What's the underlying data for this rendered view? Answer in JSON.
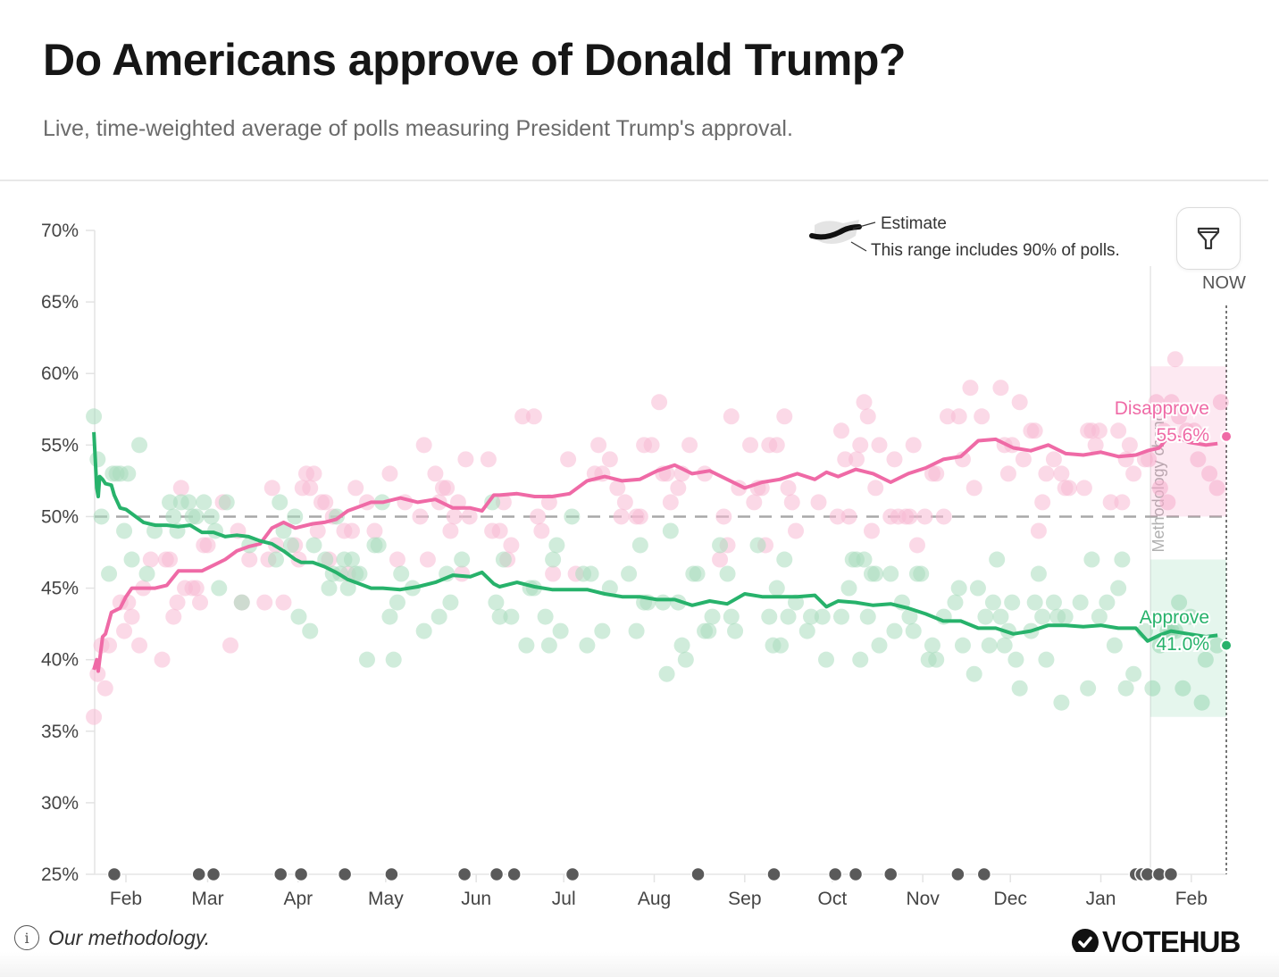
{
  "header": {
    "title": "Do Americans approve of Donald Trump?",
    "subtitle": "Live, time-weighted average of polls measuring President Trump's approval."
  },
  "legend": {
    "estimate_label": "Estimate",
    "range_label": "This range includes 90% of polls."
  },
  "controls": {
    "filter_icon": "funnel-icon",
    "now_label": "NOW"
  },
  "footer": {
    "methodology_link": "Our methodology.",
    "info_icon": "info-icon",
    "brand": "VOTEHUB"
  },
  "colors": {
    "approve": "#27b26b",
    "disapprove": "#ef6aa6",
    "approve_dot": "#a9dcbd",
    "disapprove_dot": "#f8b9d4",
    "axis_text": "#444444",
    "event_dot": "#5a5a5a"
  },
  "chart_data": {
    "type": "line",
    "title": "Do Americans approve of Donald Trump?",
    "xlabel": "",
    "ylabel": "",
    "x_unit": "days since Jan 20",
    "xlim": [
      0,
      390
    ],
    "ylim": [
      25,
      70
    ],
    "y_ticks": [
      70,
      65,
      60,
      55,
      50,
      45,
      40,
      35,
      30,
      25
    ],
    "y_tick_labels": [
      "70%",
      "65%",
      "60%",
      "55%",
      "50%",
      "45%",
      "40%",
      "35%",
      "30%",
      "25%"
    ],
    "x_ticks": [
      12,
      40,
      71,
      101,
      132,
      162,
      193,
      224,
      254,
      285,
      315,
      346,
      377
    ],
    "x_tick_labels": [
      "Feb",
      "Mar",
      "Apr",
      "May",
      "Jun",
      "Jul",
      "Aug",
      "Sep",
      "Oct",
      "Nov",
      "Dec",
      "Jan",
      "Feb"
    ],
    "reference_line": 50,
    "now_x": 389,
    "methodology_change_x": 363,
    "methodology_change_label": "Methodology change",
    "grid": false,
    "series": [
      {
        "name": "Approve",
        "latest_label": "41.0%",
        "latest": 41.0,
        "x": [
          1,
          2,
          2.5,
          3,
          4,
          5,
          7,
          8,
          10,
          12,
          14,
          18,
          22,
          26,
          30,
          34,
          38,
          42,
          46,
          50,
          54,
          58,
          62,
          66,
          70,
          72,
          76,
          80,
          84,
          88,
          92,
          96,
          100,
          106,
          112,
          118,
          124,
          130,
          134,
          138,
          140,
          146,
          152,
          158,
          164,
          170,
          176,
          182,
          188,
          194,
          200,
          206,
          212,
          218,
          224,
          230,
          236,
          242,
          248,
          252,
          256,
          262,
          268,
          274,
          280,
          286,
          292,
          298,
          304,
          310,
          316,
          322,
          328,
          334,
          340,
          346,
          352,
          358,
          362,
          366,
          370,
          376,
          382,
          386,
          389
        ],
        "values": [
          55.9,
          52.0,
          51.4,
          52.8,
          52.6,
          52.3,
          52.2,
          51.5,
          50.6,
          50.5,
          50.2,
          49.6,
          49.4,
          49.4,
          49.3,
          49.4,
          48.9,
          48.9,
          48.6,
          48.7,
          48.6,
          48.3,
          48.1,
          47.6,
          47.0,
          46.8,
          46.8,
          46.5,
          46.1,
          45.6,
          45.3,
          45.0,
          45.0,
          44.9,
          45.1,
          45.4,
          45.9,
          45.8,
          46.1,
          45.3,
          45.1,
          45.4,
          45.1,
          44.9,
          44.9,
          44.9,
          44.6,
          44.4,
          44.4,
          44.2,
          44.2,
          43.8,
          44.1,
          43.9,
          44.6,
          44.4,
          44.4,
          44.4,
          44.5,
          43.7,
          44.1,
          44.0,
          43.8,
          43.9,
          43.6,
          43.2,
          42.7,
          42.7,
          42.2,
          42.2,
          41.8,
          42.0,
          42.4,
          42.4,
          42.3,
          42.4,
          42.2,
          42.2,
          41.3,
          41.7,
          42.0,
          41.8,
          41.6,
          41.7,
          41.0
        ]
      },
      {
        "name": "Disapprove",
        "latest_label": "55.6%",
        "latest": 55.6,
        "x": [
          1,
          2,
          2.5,
          3,
          4,
          5,
          7,
          8,
          10,
          12,
          14,
          18,
          22,
          26,
          30,
          34,
          38,
          42,
          46,
          50,
          54,
          58,
          62,
          66,
          70,
          72,
          76,
          80,
          84,
          88,
          92,
          96,
          100,
          106,
          112,
          118,
          124,
          130,
          134,
          138,
          140,
          146,
          152,
          158,
          164,
          170,
          176,
          182,
          188,
          194,
          200,
          206,
          212,
          218,
          224,
          230,
          236,
          242,
          248,
          252,
          256,
          262,
          268,
          274,
          280,
          286,
          292,
          298,
          304,
          310,
          316,
          322,
          328,
          334,
          340,
          346,
          352,
          358,
          362,
          366,
          370,
          376,
          382,
          386,
          389
        ],
        "values": [
          39.3,
          40.0,
          39.2,
          40.0,
          41.6,
          41.8,
          43.3,
          43.4,
          43.6,
          44.4,
          45.0,
          45.0,
          45.0,
          45.2,
          46.2,
          46.2,
          46.2,
          46.6,
          47.0,
          47.6,
          47.9,
          48.1,
          49.2,
          49.6,
          49.2,
          49.3,
          49.5,
          49.6,
          49.8,
          50.4,
          50.7,
          51.0,
          51.0,
          51.3,
          51.0,
          51.2,
          50.6,
          50.6,
          50.4,
          51.5,
          51.5,
          51.6,
          51.4,
          51.4,
          51.6,
          52.5,
          52.8,
          52.5,
          52.6,
          53.2,
          53.6,
          53.0,
          53.2,
          52.6,
          52.0,
          52.4,
          52.6,
          53.0,
          52.6,
          53.1,
          52.8,
          53.3,
          53.0,
          52.4,
          53.0,
          53.4,
          54.0,
          54.2,
          55.3,
          55.4,
          54.8,
          54.6,
          55.0,
          54.4,
          54.3,
          54.5,
          54.2,
          54.3,
          54.6,
          54.8,
          55.8,
          55.2,
          55.0,
          55.1,
          55.6
        ]
      }
    ],
    "uncertainty_band": {
      "start_x": 363,
      "approve_range": [
        36,
        47
      ],
      "disapprove_range": [
        50,
        60.5
      ]
    },
    "event_markers_x": [
      8,
      37,
      42,
      65,
      72,
      87,
      103,
      128,
      139,
      145,
      165,
      208,
      234,
      255,
      262,
      274,
      297,
      306,
      358,
      360,
      362,
      366,
      370
    ]
  }
}
